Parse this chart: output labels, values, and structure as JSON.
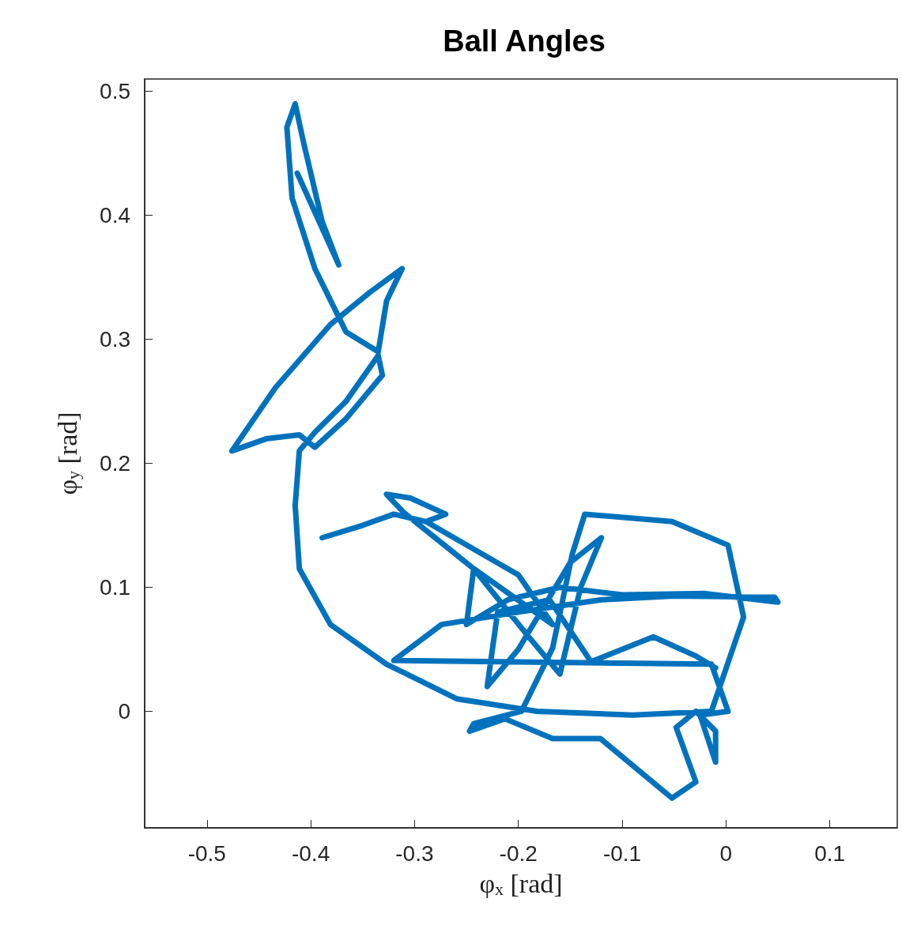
{
  "chart_data": {
    "type": "line",
    "title": "Ball Angles",
    "xlabel": "φ$_{x}$ [rad]",
    "ylabel": "φ$_{y}$ [rad]",
    "xlim": [
      -0.56,
      0.165
    ],
    "ylim": [
      -0.094,
      0.51
    ],
    "xticks": [
      -0.5,
      -0.4,
      -0.3,
      -0.2,
      -0.1,
      0,
      0.1
    ],
    "yticks": [
      0,
      0.1,
      0.2,
      0.3,
      0.4,
      0.5
    ],
    "grid": false,
    "marker": "none",
    "line_style": "solid",
    "color": "#0072bd",
    "x": [
      -0.413,
      -0.373,
      -0.389,
      -0.407,
      -0.415,
      -0.423,
      -0.418,
      -0.396,
      -0.366,
      -0.335,
      -0.327,
      -0.312,
      -0.343,
      -0.381,
      -0.434,
      -0.476,
      -0.442,
      -0.411,
      -0.396,
      -0.366,
      -0.331,
      -0.335,
      -0.366,
      -0.396,
      -0.411,
      -0.415,
      -0.411,
      -0.381,
      -0.327,
      -0.259,
      -0.182,
      -0.09,
      -0.014,
      0.017,
      0.002,
      -0.052,
      -0.136,
      -0.148,
      -0.167,
      -0.197,
      -0.243,
      -0.247,
      -0.213,
      -0.167,
      -0.121,
      -0.052,
      -0.029,
      -0.048,
      -0.048,
      -0.029,
      -0.01,
      -0.01,
      -0.025,
      0.002,
      -0.014,
      -0.32,
      -0.274,
      -0.2,
      -0.12,
      -0.05,
      0.047,
      0.05,
      -0.02,
      -0.1,
      -0.16,
      -0.21,
      -0.25,
      -0.243,
      -0.167,
      -0.2,
      -0.289,
      -0.32,
      -0.35,
      -0.389,
      -0.35,
      -0.32,
      -0.289,
      -0.27,
      -0.304,
      -0.327,
      -0.31,
      -0.243,
      -0.19,
      -0.16,
      -0.14,
      -0.12,
      -0.15,
      -0.2,
      -0.23,
      -0.22,
      -0.17,
      -0.13,
      -0.07,
      -0.03,
      -0.01
    ],
    "values": [
      0.434,
      0.36,
      0.395,
      0.459,
      0.49,
      0.471,
      0.414,
      0.357,
      0.306,
      0.29,
      0.331,
      0.357,
      0.338,
      0.312,
      0.261,
      0.21,
      0.22,
      0.223,
      0.213,
      0.236,
      0.271,
      0.287,
      0.25,
      0.225,
      0.21,
      0.166,
      0.115,
      0.07,
      0.038,
      0.01,
      0.0,
      -0.003,
      0.0,
      0.076,
      0.134,
      0.153,
      0.159,
      0.127,
      0.051,
      0.0,
      -0.01,
      -0.016,
      -0.006,
      -0.022,
      -0.022,
      -0.07,
      -0.057,
      -0.013,
      -0.013,
      0.0,
      -0.016,
      -0.041,
      -0.003,
      0.0,
      0.038,
      0.041,
      0.07,
      0.08,
      0.09,
      0.093,
      0.092,
      0.088,
      0.095,
      0.094,
      0.1,
      0.09,
      0.07,
      0.115,
      0.07,
      0.11,
      0.153,
      0.159,
      0.15,
      0.14,
      0.15,
      0.159,
      0.153,
      0.159,
      0.172,
      0.175,
      0.16,
      0.115,
      0.06,
      0.03,
      0.1,
      0.14,
      0.12,
      0.05,
      0.02,
      0.08,
      0.09,
      0.04,
      0.06,
      0.045,
      0.035
    ]
  }
}
